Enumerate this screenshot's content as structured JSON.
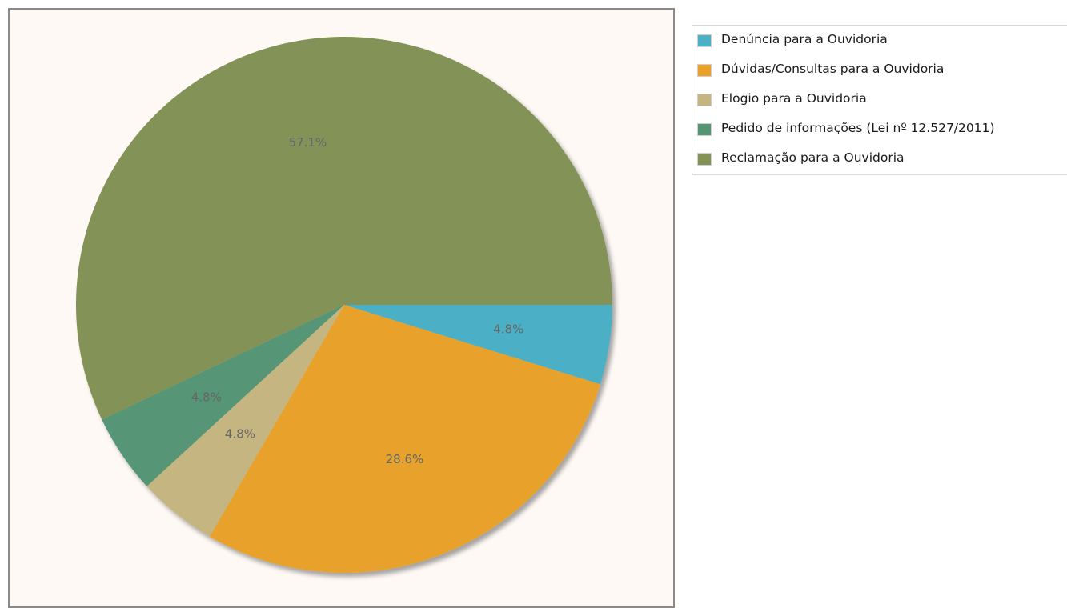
{
  "chart_data": {
    "type": "pie",
    "title": "",
    "legend_position": "right",
    "slices": [
      {
        "label": "Denúncia para a Ouvidoria",
        "percent": 4.8,
        "percent_label": "4.8%",
        "color": "#4bafc5"
      },
      {
        "label": "Dúvidas/Consultas para a Ouvidoria",
        "percent": 28.6,
        "percent_label": "28.6%",
        "color": "#e8a129"
      },
      {
        "label": "Elogio para a Ouvidoria",
        "percent": 4.8,
        "percent_label": "4.8%",
        "color": "#c5b580"
      },
      {
        "label": "Pedido de informações (Lei nº 12.527/2011)",
        "percent": 4.8,
        "percent_label": "4.8%",
        "color": "#569574"
      },
      {
        "label": "Reclamação para a Ouvidoria",
        "percent": 57.1,
        "percent_label": "57.1%",
        "color": "#839256"
      }
    ]
  },
  "colors": {
    "plot_background": "#fef9f5",
    "plot_border": "#8a8a8a",
    "label_text": "#666666"
  }
}
